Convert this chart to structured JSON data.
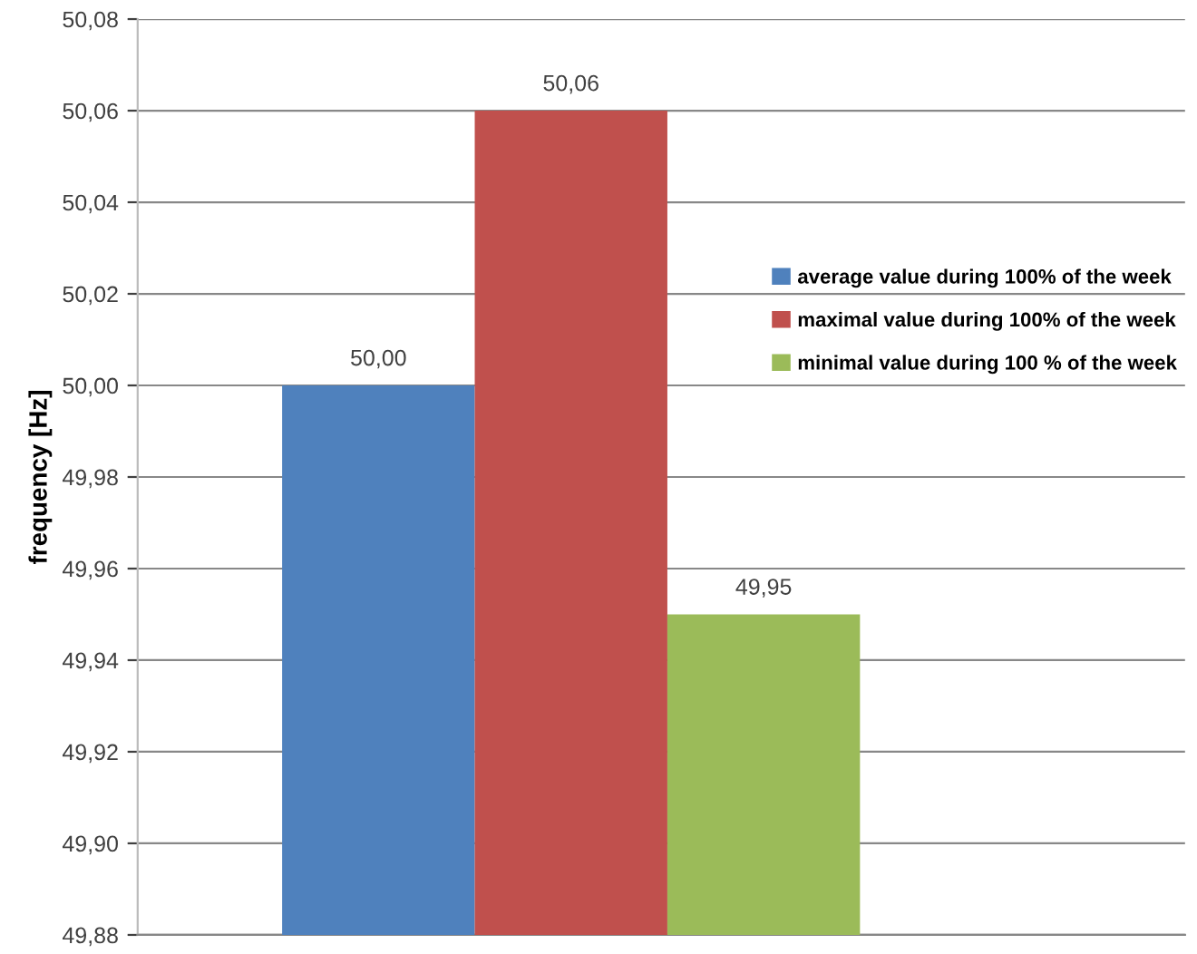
{
  "chart_data": {
    "type": "bar",
    "ylabel": "frequency [Hz]",
    "categories": [
      null
    ],
    "series": [
      {
        "name": "average value during 100% of the week",
        "color": "#4f81bd",
        "values": [
          50.0
        ],
        "value_labels": [
          "50,00"
        ]
      },
      {
        "name": "maximal value during 100% of the week",
        "color": "#c0504d",
        "values": [
          50.06
        ],
        "value_labels": [
          "50,06"
        ]
      },
      {
        "name": "minimal value during 100 % of the week",
        "color": "#9bbb59",
        "values": [
          49.95
        ],
        "value_labels": [
          "49,95"
        ]
      }
    ],
    "ylim": [
      49.88,
      50.08
    ],
    "yticks": [
      {
        "value": 49.88,
        "label": "49,88"
      },
      {
        "value": 49.9,
        "label": "49,90"
      },
      {
        "value": 49.92,
        "label": "49,92"
      },
      {
        "value": 49.94,
        "label": "49,94"
      },
      {
        "value": 49.96,
        "label": "49,96"
      },
      {
        "value": 49.98,
        "label": "49,98"
      },
      {
        "value": 50.0,
        "label": "50,00"
      },
      {
        "value": 50.02,
        "label": "50,02"
      },
      {
        "value": 50.04,
        "label": "50,04"
      },
      {
        "value": 50.06,
        "label": "50,06"
      },
      {
        "value": 50.08,
        "label": "50,08"
      }
    ],
    "grid": "y",
    "legend": "right"
  }
}
